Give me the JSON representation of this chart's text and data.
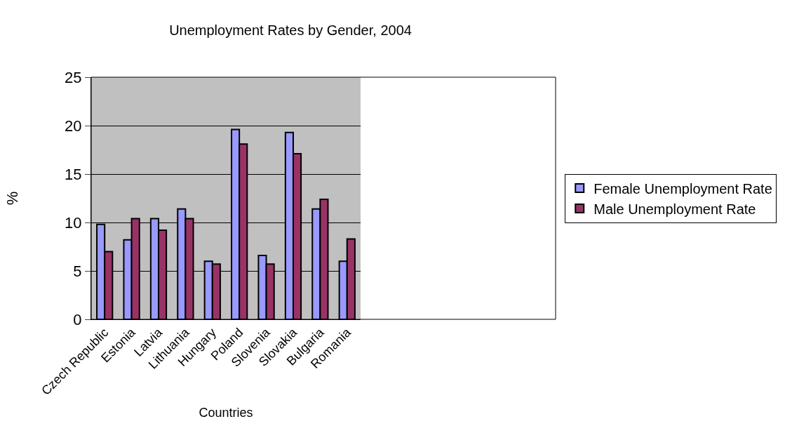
{
  "chart_data": {
    "type": "bar",
    "title": "Unemployment Rates by Gender, 2004",
    "xlabel": "Countries",
    "ylabel": "%",
    "categories": [
      "Czech Republic",
      "Estonia",
      "Latvia",
      "Lithuania",
      "Hungary",
      "Poland",
      "Slovenia",
      "Slovakia",
      "Bulgaria",
      "Romania"
    ],
    "series": [
      {
        "name": "Female Unemployment Rate",
        "color": "#9999ff",
        "values": [
          9.8,
          8.2,
          10.4,
          11.4,
          6.0,
          19.6,
          6.6,
          19.3,
          11.4,
          6.0
        ]
      },
      {
        "name": "Male Unemployment Rate",
        "color": "#993366",
        "values": [
          7.0,
          10.4,
          9.2,
          10.4,
          5.7,
          18.1,
          5.7,
          17.1,
          12.4,
          8.3
        ]
      }
    ],
    "ylim": [
      0,
      25
    ],
    "yticks": [
      0,
      5,
      10,
      15,
      20,
      25
    ],
    "grid": "y",
    "legend": "right"
  }
}
